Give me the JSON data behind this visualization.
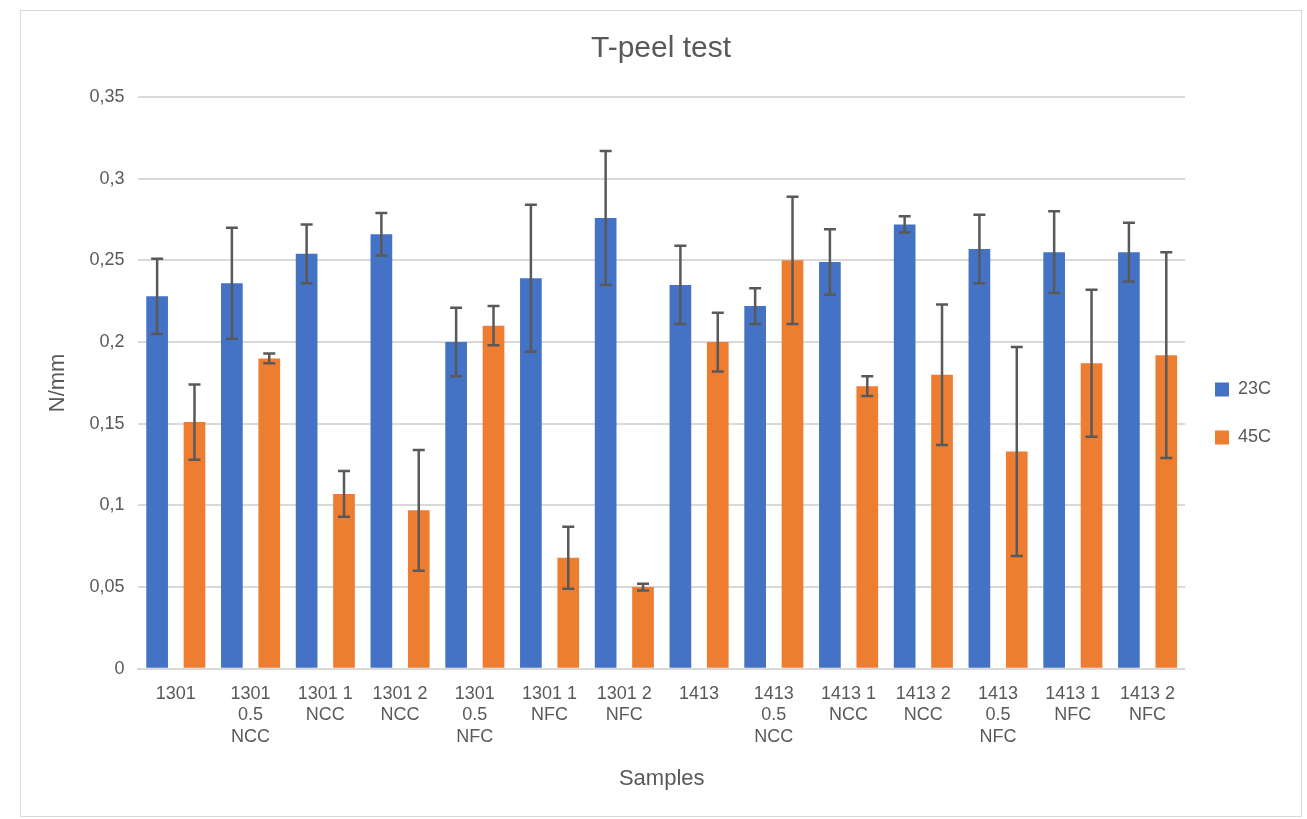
{
  "chart_data": {
    "type": "bar",
    "title": "T-peel test",
    "xlabel": "Samples",
    "ylabel": "N/mm",
    "categories": [
      "1301",
      "1301 0.5 NCC",
      "1301 1 NCC",
      "1301 2 NCC",
      "1301 0.5 NFC",
      "1301 1 NFC",
      "1301 2 NFC",
      "1413",
      "1413 0.5 NCC",
      "1413 1 NCC",
      "1413 2 NCC",
      "1413 0.5 NFC",
      "1413 1 NFC",
      "1413 2 NFC"
    ],
    "series": [
      {
        "name": "23C",
        "color": "#4472c4",
        "values": [
          0.228,
          0.236,
          0.254,
          0.266,
          0.2,
          0.239,
          0.276,
          0.235,
          0.222,
          0.249,
          0.272,
          0.257,
          0.255,
          0.255
        ],
        "errors": [
          0.023,
          0.034,
          0.018,
          0.013,
          0.021,
          0.045,
          0.041,
          0.024,
          0.011,
          0.02,
          0.005,
          0.021,
          0.025,
          0.018
        ]
      },
      {
        "name": "45C",
        "color": "#ed7d31",
        "values": [
          0.151,
          0.19,
          0.107,
          0.097,
          0.21,
          0.068,
          0.05,
          0.2,
          0.25,
          0.173,
          0.18,
          0.133,
          0.187,
          0.192
        ],
        "errors": [
          0.023,
          0.003,
          0.014,
          0.037,
          0.012,
          0.019,
          0.002,
          0.018,
          0.039,
          0.006,
          0.043,
          0.064,
          0.045,
          0.063
        ]
      }
    ],
    "ylim": [
      0,
      0.35
    ],
    "yticks": [
      {
        "value": 0,
        "label": "0"
      },
      {
        "value": 0.05,
        "label": "0,05"
      },
      {
        "value": 0.1,
        "label": "0,1"
      },
      {
        "value": 0.15,
        "label": "0,15"
      },
      {
        "value": 0.2,
        "label": "0,2"
      },
      {
        "value": 0.25,
        "label": "0,25"
      },
      {
        "value": 0.3,
        "label": "0,3"
      },
      {
        "value": 0.35,
        "label": "0,35"
      }
    ],
    "grid": "y",
    "legend": "right"
  }
}
